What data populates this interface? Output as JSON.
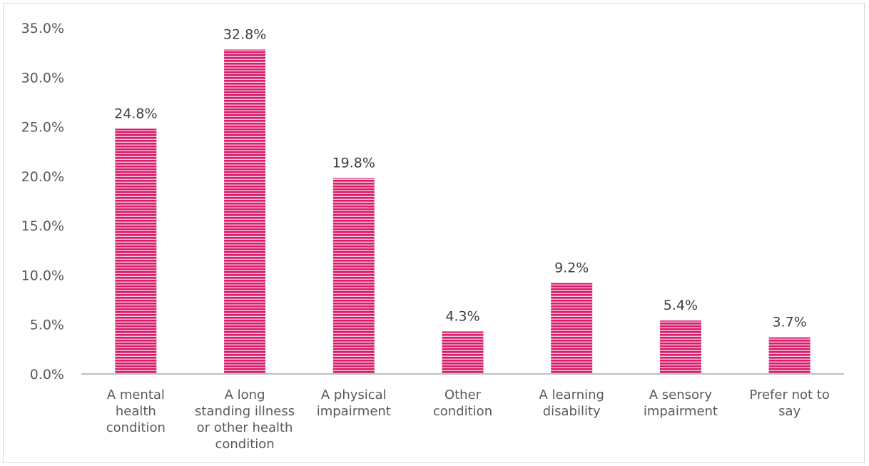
{
  "chart_data": {
    "type": "bar",
    "categories": [
      [
        "A mental",
        "health",
        "condition"
      ],
      [
        "A long",
        "standing illness",
        "or other health",
        "condition"
      ],
      [
        "A physical",
        "impairment"
      ],
      [
        "Other",
        "condition"
      ],
      [
        "A learning",
        "disability"
      ],
      [
        "A sensory",
        "impairment"
      ],
      [
        "Prefer not to",
        "say"
      ]
    ],
    "values": [
      24.8,
      32.8,
      19.8,
      4.3,
      9.2,
      5.4,
      3.7
    ],
    "value_labels": [
      "24.8%",
      "32.8%",
      "19.8%",
      "4.3%",
      "9.2%",
      "5.4%",
      "3.7%"
    ],
    "ylim": [
      0,
      35
    ],
    "yticks": [
      0,
      5,
      10,
      15,
      20,
      25,
      30,
      35
    ],
    "ytick_labels": [
      "0.0%",
      "5.0%",
      "10.0%",
      "15.0%",
      "20.0%",
      "25.0%",
      "30.0%",
      "35.0%"
    ],
    "grid": false,
    "legend": "none",
    "title": "",
    "xlabel": "",
    "ylabel": "",
    "colors": {
      "bar": "#d81b6b",
      "bar_stripe": "#f7c6da",
      "axis": "#bfbfbf"
    }
  }
}
